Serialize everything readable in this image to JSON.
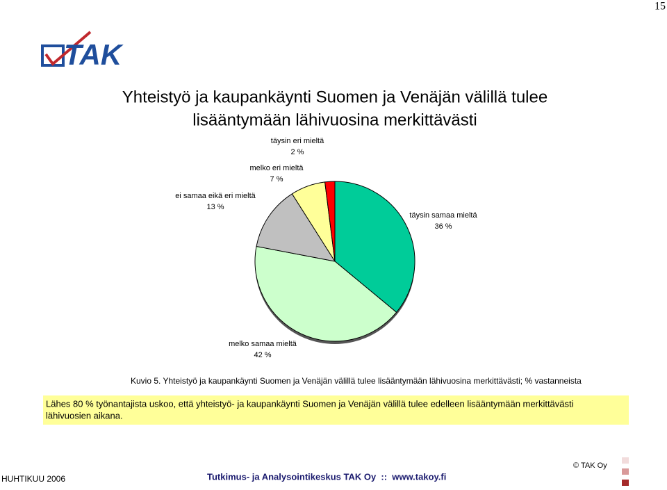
{
  "page_number": "15",
  "logo": "TAK",
  "caption": "Kuvio 5. Yhteistyö ja kaupankäynti Suomen ja Venäjän välillä tulee lisääntymään lähivuosina merkittävästi; % vastanneista",
  "summary": [
    "Lähes 80 % työnantajista uskoo, että yhteistyö- ja kaupankäynti Suomen ja Venäjän välillä tulee edelleen lisääntymään merkittävästi",
    "lähivuosien aikana."
  ],
  "footer": {
    "date": "HUHTIKUU 2006",
    "organization": "Tutkimus- ja Analysointikeskus TAK Oy  ::  www.takoy.fi",
    "copyright": "© TAK Oy"
  },
  "chart_data": {
    "type": "pie",
    "title": [
      "Yhteistyö ja kaupankäynti Suomen ja Venäjän välillä tulee",
      "lisääntymään lähivuosina merkittävästi"
    ],
    "categories": [
      "täysin samaa mieltä",
      "melko samaa mieltä",
      "ei samaa eikä eri mieltä",
      "melko eri mieltä",
      "täysin eri mieltä"
    ],
    "values": [
      36,
      42,
      13,
      7,
      2
    ],
    "value_labels": [
      "36 %",
      "42 %",
      "13 %",
      "7 %",
      "2 %"
    ],
    "colors": [
      "#00cc99",
      "#ccffcc",
      "#c0c0c0",
      "#ffff99",
      "#ff0000"
    ]
  }
}
